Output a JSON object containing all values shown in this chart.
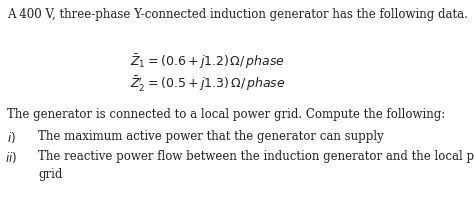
{
  "background_color": "#ffffff",
  "text_color": "#222222",
  "line1": "A 400 V, three-phase Y-connected induction generator has the following data.",
  "line2": "The generator is connected to a local power grid. Compute the following:",
  "item_i_text": "The maximum active power that the generator can supply",
  "item_ii_text1": "The reactive power flow between the induction generator and the local power",
  "item_ii_text2": "grid",
  "font_size_body": 8.5,
  "font_size_eq": 9.0,
  "fig_width": 4.74,
  "fig_height": 2.04,
  "dpi": 100
}
